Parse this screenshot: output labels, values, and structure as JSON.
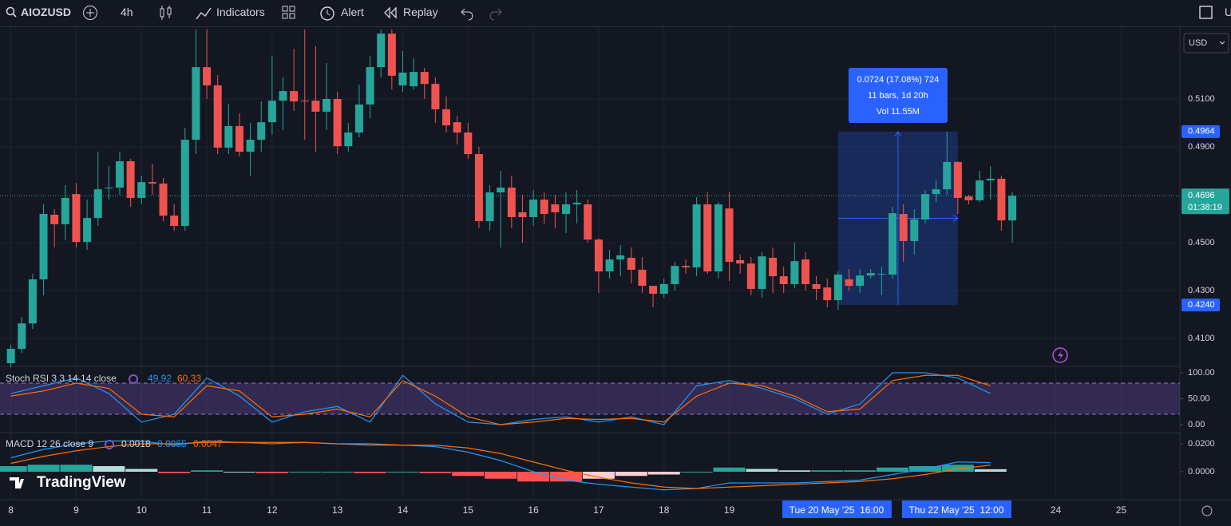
{
  "ui": {
    "symbol": "AIOZUSD",
    "interval": "4h",
    "indicators": "Indicators",
    "alert": "Alert",
    "replay": "Replay",
    "user": "U",
    "currency": "USD",
    "logo": "TradingView"
  },
  "chart_data": {
    "type": "candlestick",
    "up_color": "#26a69a",
    "down_color": "#ef5350",
    "grid": true,
    "candles": [
      [
        0.3997,
        0.4075,
        0.398,
        0.4057
      ],
      [
        0.4057,
        0.419,
        0.404,
        0.4163
      ],
      [
        0.4163,
        0.437,
        0.414,
        0.4347
      ],
      [
        0.4347,
        0.466,
        0.428,
        0.462
      ],
      [
        0.4617,
        0.464,
        0.448,
        0.4577
      ],
      [
        0.4577,
        0.474,
        0.451,
        0.4687
      ],
      [
        0.4703,
        0.475,
        0.448,
        0.4503
      ],
      [
        0.4503,
        0.468,
        0.447,
        0.4603
      ],
      [
        0.4603,
        0.488,
        0.457,
        0.4723
      ],
      [
        0.4727,
        0.482,
        0.468,
        0.473
      ],
      [
        0.473,
        0.488,
        0.47,
        0.484
      ],
      [
        0.484,
        0.485,
        0.465,
        0.4687
      ],
      [
        0.4687,
        0.478,
        0.466,
        0.4753
      ],
      [
        0.4753,
        0.483,
        0.47,
        0.4747
      ],
      [
        0.4747,
        0.477,
        0.459,
        0.4613
      ],
      [
        0.4613,
        0.466,
        0.455,
        0.457
      ],
      [
        0.457,
        0.498,
        0.455,
        0.493
      ],
      [
        0.493,
        0.539,
        0.487,
        0.5233
      ],
      [
        0.5233,
        0.539,
        0.51,
        0.5157
      ],
      [
        0.5157,
        0.52,
        0.487,
        0.4897
      ],
      [
        0.4897,
        0.508,
        0.487,
        0.4987
      ],
      [
        0.4987,
        0.504,
        0.486,
        0.488
      ],
      [
        0.488,
        0.5,
        0.478,
        0.493
      ],
      [
        0.493,
        0.509,
        0.488,
        0.5003
      ],
      [
        0.5003,
        0.528,
        0.495,
        0.5093
      ],
      [
        0.5093,
        0.519,
        0.497,
        0.5133
      ],
      [
        0.5133,
        0.531,
        0.505,
        0.509
      ],
      [
        0.5093,
        0.539,
        0.493,
        0.509
      ],
      [
        0.5093,
        0.532,
        0.488,
        0.5047
      ],
      [
        0.5047,
        0.525,
        0.497,
        0.51
      ],
      [
        0.51,
        0.513,
        0.487,
        0.4903
      ],
      [
        0.4903,
        0.5,
        0.488,
        0.496
      ],
      [
        0.496,
        0.516,
        0.494,
        0.5077
      ],
      [
        0.5077,
        0.528,
        0.502,
        0.5233
      ],
      [
        0.5233,
        0.539,
        0.519,
        0.5373
      ],
      [
        0.5373,
        0.539,
        0.514,
        0.5197
      ],
      [
        0.5157,
        0.53,
        0.513,
        0.521
      ],
      [
        0.5153,
        0.527,
        0.514,
        0.5213
      ],
      [
        0.5213,
        0.523,
        0.51,
        0.5163
      ],
      [
        0.5163,
        0.519,
        0.5,
        0.5057
      ],
      [
        0.5057,
        0.511,
        0.496,
        0.499
      ],
      [
        0.5003,
        0.503,
        0.491,
        0.496
      ],
      [
        0.496,
        0.5,
        0.485,
        0.487
      ],
      [
        0.487,
        0.49,
        0.456,
        0.459
      ],
      [
        0.459,
        0.474,
        0.455,
        0.471
      ],
      [
        0.471,
        0.48,
        0.448,
        0.473
      ],
      [
        0.473,
        0.478,
        0.456,
        0.4607
      ],
      [
        0.4627,
        0.47,
        0.45,
        0.4607
      ],
      [
        0.4607,
        0.472,
        0.457,
        0.468
      ],
      [
        0.468,
        0.471,
        0.458,
        0.462
      ],
      [
        0.466,
        0.47,
        0.456,
        0.4627
      ],
      [
        0.462,
        0.471,
        0.454,
        0.466
      ],
      [
        0.466,
        0.472,
        0.458,
        0.4667
      ],
      [
        0.466,
        0.468,
        0.45,
        0.4513
      ],
      [
        0.4513,
        0.452,
        0.429,
        0.438
      ],
      [
        0.438,
        0.447,
        0.435,
        0.443
      ],
      [
        0.443,
        0.449,
        0.436,
        0.4447
      ],
      [
        0.4437,
        0.448,
        0.433,
        0.4387
      ],
      [
        0.4387,
        0.444,
        0.429,
        0.432
      ],
      [
        0.432,
        0.431,
        0.423,
        0.4287
      ],
      [
        0.4287,
        0.435,
        0.427,
        0.4327
      ],
      [
        0.4327,
        0.442,
        0.43,
        0.4403
      ],
      [
        0.4403,
        0.443,
        0.437,
        0.4397
      ],
      [
        0.4397,
        0.469,
        0.436,
        0.466
      ],
      [
        0.466,
        0.471,
        0.437,
        0.438
      ],
      [
        0.438,
        0.467,
        0.435,
        0.466
      ],
      [
        0.4643,
        0.471,
        0.434,
        0.442
      ],
      [
        0.4427,
        0.445,
        0.437,
        0.4413
      ],
      [
        0.4413,
        0.444,
        0.428,
        0.4307
      ],
      [
        0.4307,
        0.446,
        0.427,
        0.4443
      ],
      [
        0.4437,
        0.448,
        0.429,
        0.436
      ],
      [
        0.436,
        0.44,
        0.429,
        0.4327
      ],
      [
        0.4327,
        0.45,
        0.431,
        0.4423
      ],
      [
        0.443,
        0.446,
        0.43,
        0.4327
      ],
      [
        0.4327,
        0.436,
        0.426,
        0.4307
      ],
      [
        0.4313,
        0.435,
        0.423,
        0.426
      ],
      [
        0.426,
        0.438,
        0.422,
        0.4367
      ],
      [
        0.4347,
        0.439,
        0.43,
        0.432
      ],
      [
        0.432,
        0.439,
        0.429,
        0.4363
      ],
      [
        0.4363,
        0.439,
        0.435,
        0.4373
      ],
      [
        0.4367,
        0.44,
        0.428,
        0.437
      ],
      [
        0.4367,
        0.465,
        0.435,
        0.4623
      ],
      [
        0.462,
        0.466,
        0.442,
        0.4507
      ],
      [
        0.4507,
        0.464,
        0.445,
        0.4597
      ],
      [
        0.4597,
        0.472,
        0.458,
        0.4703
      ],
      [
        0.4703,
        0.476,
        0.467,
        0.4723
      ],
      [
        0.4723,
        0.4964,
        0.47,
        0.4837
      ],
      [
        0.4837,
        0.484,
        0.462,
        0.4687
      ],
      [
        0.4693,
        0.47,
        0.466,
        0.4677
      ],
      [
        0.4677,
        0.48,
        0.467,
        0.476
      ],
      [
        0.476,
        0.482,
        0.468,
        0.4767
      ],
      [
        0.4767,
        0.478,
        0.455,
        0.4593
      ],
      [
        0.4593,
        0.471,
        0.45,
        0.4696
      ]
    ],
    "ylim": [
      0.3987,
      0.539
    ],
    "yticks": [
      {
        "value": 0.51,
        "label": "0.5100"
      },
      {
        "value": 0.49,
        "label": "0.4900"
      },
      {
        "value": 0.45,
        "label": "0.4500"
      },
      {
        "value": 0.43,
        "label": "0.4300"
      },
      {
        "value": 0.41,
        "label": "0.4100"
      }
    ],
    "xticks": [
      {
        "value": 0,
        "label": "8"
      },
      {
        "value": 6,
        "label": "9"
      },
      {
        "value": 12,
        "label": "10"
      },
      {
        "value": 18,
        "label": "11"
      },
      {
        "value": 24,
        "label": "12"
      },
      {
        "value": 30,
        "label": "13"
      },
      {
        "value": 36,
        "label": "14"
      },
      {
        "value": 42,
        "label": "15"
      },
      {
        "value": 48,
        "label": "16"
      },
      {
        "value": 54,
        "label": "17"
      },
      {
        "value": 60,
        "label": "18"
      },
      {
        "value": 66,
        "label": "19"
      },
      {
        "value": 96,
        "label": "24"
      },
      {
        "value": 102,
        "label": "25"
      }
    ],
    "xlim": [
      -1,
      107.4
    ],
    "price_labels": [
      {
        "value": 0.4964,
        "label": "0.4964"
      },
      {
        "value": 0.424,
        "label": "0.4240"
      }
    ],
    "last_price": {
      "value": 0.4696,
      "label": "0.4696",
      "countdown": "01:38:19"
    },
    "measure": {
      "from": 0.424,
      "to": 0.4964,
      "start": 76,
      "end": 87,
      "lines": [
        "0.0724 (17.08%) 724",
        "11 bars, 1d 20h",
        "Vol 11.55M"
      ]
    },
    "time_labels": [
      {
        "value": 76,
        "label": "Tue 20 May '25  16:00"
      },
      {
        "value": 87,
        "label": "Thu 22 May '25  12:00"
      }
    ],
    "stoch": {
      "title": "Stoch RSI 3 3 14 14 close",
      "last": [
        "49.92",
        "60.33"
      ],
      "ylim": [
        -13.8,
        110.8
      ],
      "band": [
        20,
        80
      ],
      "yticks": [
        {
          "value": 100,
          "label": "100.00"
        },
        {
          "value": 50,
          "label": "50.00"
        },
        {
          "value": 0,
          "label": "0.00"
        }
      ],
      "x": [
        0,
        3,
        6,
        9,
        12,
        15,
        18,
        21,
        24,
        27,
        30,
        33,
        36,
        39,
        42,
        45,
        48,
        51,
        54,
        57,
        60,
        63,
        66,
        69,
        72,
        75,
        78,
        81,
        84,
        87,
        90
      ],
      "series": [
        {
          "name": "K",
          "color": "#2196f3",
          "values": [
            60,
            75,
            90,
            60,
            5,
            20,
            90,
            55,
            5,
            25,
            35,
            5,
            95,
            40,
            5,
            0,
            10,
            15,
            5,
            15,
            0,
            75,
            85,
            70,
            50,
            20,
            40,
            100,
            100,
            90,
            60
          ]
        },
        {
          "name": "D",
          "color": "#ff6d00",
          "values": [
            55,
            65,
            80,
            70,
            20,
            15,
            75,
            65,
            15,
            20,
            30,
            15,
            85,
            55,
            15,
            0,
            5,
            12,
            10,
            12,
            5,
            55,
            80,
            75,
            55,
            25,
            30,
            85,
            95,
            95,
            75
          ]
        }
      ]
    },
    "macd": {
      "title": "MACD 12 26 close 9",
      "last": [
        "0.0018",
        "0.0065",
        "0.0047"
      ],
      "ylim": [
        -0.01943,
        0.02743
      ],
      "yticks": [
        {
          "value": 0.02,
          "label": "0.0200"
        },
        {
          "value": 0,
          "label": "0.0000"
        }
      ],
      "x": [
        0,
        3,
        6,
        9,
        12,
        15,
        18,
        21,
        24,
        27,
        30,
        33,
        36,
        39,
        42,
        45,
        48,
        51,
        54,
        57,
        60,
        63,
        66,
        69,
        72,
        75,
        78,
        81,
        84,
        87,
        90
      ],
      "histogram": [
        0.004,
        0.005,
        0.005,
        0.004,
        0.002,
        -0.001,
        0.001,
        0,
        -0.001,
        0,
        0,
        -0.001,
        0,
        -0.001,
        -0.003,
        -0.005,
        -0.007,
        -0.007,
        -0.005,
        -0.003,
        -0.002,
        0,
        0.003,
        0.002,
        0.001,
        0.001,
        0.001,
        0.003,
        0.004,
        0.005,
        0.0018
      ],
      "series": [
        {
          "name": "MACD",
          "color": "#2196f3",
          "values": [
            0.01,
            0.016,
            0.02,
            0.022,
            0.022,
            0.019,
            0.022,
            0.021,
            0.02,
            0.021,
            0.02,
            0.019,
            0.019,
            0.018,
            0.014,
            0.008,
            0,
            -0.006,
            -0.009,
            -0.011,
            -0.013,
            -0.012,
            -0.008,
            -0.008,
            -0.008,
            -0.007,
            -0.006,
            -0.002,
            0.002,
            0.007,
            0.0065
          ]
        },
        {
          "name": "Signal",
          "color": "#ff6d00",
          "values": [
            0.006,
            0.011,
            0.015,
            0.018,
            0.02,
            0.02,
            0.021,
            0.021,
            0.021,
            0.021,
            0.02,
            0.02,
            0.019,
            0.019,
            0.017,
            0.013,
            0.007,
            0.001,
            -0.004,
            -0.008,
            -0.011,
            -0.012,
            -0.011,
            -0.01,
            -0.009,
            -0.008,
            -0.007,
            -0.005,
            -0.002,
            0.002,
            0.0047
          ]
        }
      ]
    }
  }
}
